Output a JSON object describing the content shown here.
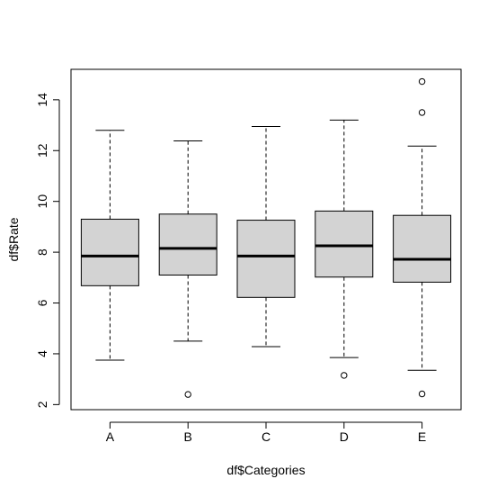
{
  "chart_data": {
    "type": "boxplot",
    "title": "",
    "xlabel": "df$Categories",
    "ylabel": "df$Rate",
    "ylim": [
      1.8,
      15.2
    ],
    "yticks": [
      2,
      4,
      6,
      8,
      10,
      12,
      14
    ],
    "grid": false,
    "legend": "none",
    "colors": {
      "box_fill": "#d3d3d3",
      "stroke": "#000000"
    },
    "categories": [
      "A",
      "B",
      "C",
      "D",
      "E"
    ],
    "boxes": [
      {
        "category": "A",
        "whisker_low": 3.75,
        "q1": 6.68,
        "median": 7.85,
        "q3": 9.3,
        "whisker_high": 12.8,
        "outliers": []
      },
      {
        "category": "B",
        "whisker_low": 4.5,
        "q1": 7.1,
        "median": 8.15,
        "q3": 9.5,
        "whisker_high": 12.38,
        "outliers": [
          2.4
        ]
      },
      {
        "category": "C",
        "whisker_low": 4.28,
        "q1": 6.22,
        "median": 7.85,
        "q3": 9.26,
        "whisker_high": 12.95,
        "outliers": []
      },
      {
        "category": "D",
        "whisker_low": 3.85,
        "q1": 7.02,
        "median": 8.25,
        "q3": 9.62,
        "whisker_high": 13.2,
        "outliers": [
          3.15
        ]
      },
      {
        "category": "E",
        "whisker_low": 3.35,
        "q1": 6.82,
        "median": 7.72,
        "q3": 9.45,
        "whisker_high": 12.18,
        "outliers": [
          2.42,
          13.5,
          14.72
        ]
      }
    ]
  }
}
